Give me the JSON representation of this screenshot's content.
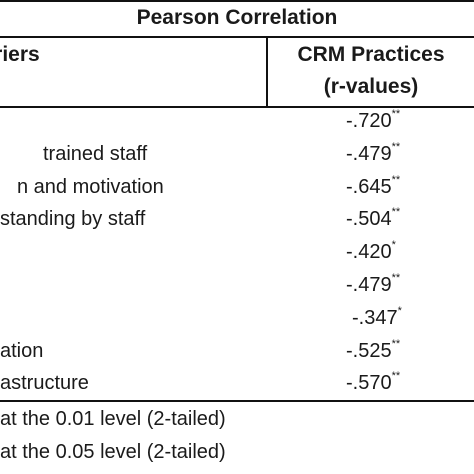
{
  "table": {
    "title": "Pearson Correlation",
    "col1_header": "rriers",
    "col2_header_line1": "CRM Practices",
    "col2_header_line2": "(r-values)",
    "rows": [
      {
        "label": "",
        "value": "-.720",
        "sig": "**"
      },
      {
        "label": "trained staff",
        "value": "-.479",
        "sig": "**"
      },
      {
        "label": "n and motivation",
        "value": "-.645",
        "sig": "**"
      },
      {
        "label": "standing by staff",
        "value": "-.504",
        "sig": "**"
      },
      {
        "label": "",
        "value": "-.420",
        "sig": "*"
      },
      {
        "label": "",
        "value": "-.479",
        "sig": "**"
      },
      {
        "label": "",
        "value": "-.347",
        "sig": "*"
      },
      {
        "label": "ation",
        "value": "-.525",
        "sig": "**"
      },
      {
        "label": "astructure",
        "value": "-.570",
        "sig": "**"
      }
    ]
  },
  "notes": {
    "line1": "at the 0.01 level (2-tailed)",
    "line2": "at the 0.05 level (2-tailed)"
  }
}
